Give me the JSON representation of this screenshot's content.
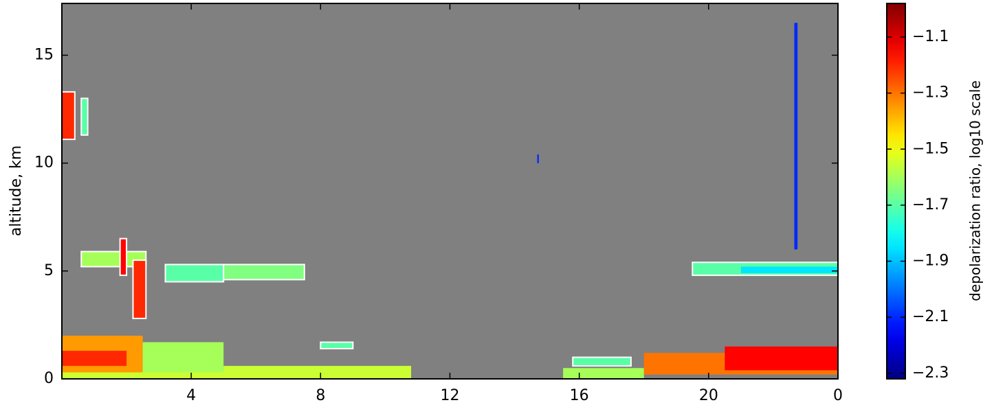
{
  "chart_data": {
    "type": "heatmap",
    "y_label": "altitude, km",
    "colorbar_label": "depolarization ratio, log10 scale",
    "colormap": "jet",
    "xlim": [
      0,
      24
    ],
    "ylim": [
      0,
      17.4
    ],
    "xticks": [
      4,
      8,
      12,
      16,
      20,
      {
        "value": 24,
        "label": "0"
      }
    ],
    "yticks": [
      0,
      5,
      10,
      15
    ],
    "clim": [
      -2.32,
      -0.98
    ],
    "cticks": [
      {
        "value": -1.1,
        "label": "−1.1"
      },
      {
        "value": -1.3,
        "label": "−1.3"
      },
      {
        "value": -1.5,
        "label": "−1.5"
      },
      {
        "value": -1.7,
        "label": "−1.7"
      },
      {
        "value": -1.9,
        "label": "−1.9"
      },
      {
        "value": -2.1,
        "label": "−2.1"
      },
      {
        "value": -2.3,
        "label": "−2.3"
      }
    ],
    "background": "#808080",
    "cells": [
      {
        "x": [
          0,
          10.8
        ],
        "y": [
          0,
          0.4
        ],
        "value": -1.55,
        "outline": false
      },
      {
        "x": [
          0,
          2.5
        ],
        "y": [
          0.3,
          2.0
        ],
        "value": -1.35,
        "outline": false
      },
      {
        "x": [
          0,
          2.0
        ],
        "y": [
          0.6,
          1.3
        ],
        "value": -1.2,
        "outline": false
      },
      {
        "x": [
          2.5,
          5.0
        ],
        "y": [
          0.3,
          1.7
        ],
        "value": -1.6,
        "outline": false
      },
      {
        "x": [
          5.0,
          10.8
        ],
        "y": [
          0.3,
          0.6
        ],
        "value": -1.55,
        "outline": false
      },
      {
        "x": [
          0,
          0.4
        ],
        "y": [
          11.1,
          13.3
        ],
        "value": -1.2,
        "outline": true
      },
      {
        "x": [
          0.6,
          0.8
        ],
        "y": [
          11.3,
          13.0
        ],
        "value": -1.7,
        "outline": true
      },
      {
        "x": [
          0.6,
          2.6
        ],
        "y": [
          5.2,
          5.9
        ],
        "value": -1.6,
        "outline": true
      },
      {
        "x": [
          1.8,
          2.0
        ],
        "y": [
          4.8,
          6.5
        ],
        "value": -1.15,
        "outline": true
      },
      {
        "x": [
          2.2,
          2.6
        ],
        "y": [
          2.8,
          5.5
        ],
        "value": -1.2,
        "outline": true
      },
      {
        "x": [
          3.2,
          5.0
        ],
        "y": [
          4.5,
          5.3
        ],
        "value": -1.7,
        "outline": true
      },
      {
        "x": [
          5.0,
          7.5
        ],
        "y": [
          4.6,
          5.3
        ],
        "value": -1.65,
        "outline": true
      },
      {
        "x": [
          8.0,
          9.0
        ],
        "y": [
          1.4,
          1.7
        ],
        "value": -1.7,
        "outline": true
      },
      {
        "x": [
          15.8,
          17.6
        ],
        "y": [
          0.6,
          1.0
        ],
        "value": -1.7,
        "outline": true
      },
      {
        "x": [
          15.5,
          18.0
        ],
        "y": [
          0,
          0.5
        ],
        "value": -1.6,
        "outline": false
      },
      {
        "x": [
          18.0,
          24
        ],
        "y": [
          0.2,
          1.2
        ],
        "value": -1.3,
        "outline": false
      },
      {
        "x": [
          20.5,
          24
        ],
        "y": [
          0.4,
          1.5
        ],
        "value": -1.15,
        "outline": false
      },
      {
        "x": [
          19.5,
          24
        ],
        "y": [
          4.8,
          5.4
        ],
        "value": -1.7,
        "outline": true
      },
      {
        "x": [
          21.0,
          24
        ],
        "y": [
          4.9,
          5.2
        ],
        "value": -1.85,
        "outline": false
      },
      {
        "x": [
          22.65,
          22.75
        ],
        "y": [
          6.0,
          16.5
        ],
        "value": -2.1,
        "outline": false
      },
      {
        "x": [
          14.7,
          14.75
        ],
        "y": [
          10.0,
          10.4
        ],
        "value": -2.1,
        "outline": false
      }
    ]
  }
}
